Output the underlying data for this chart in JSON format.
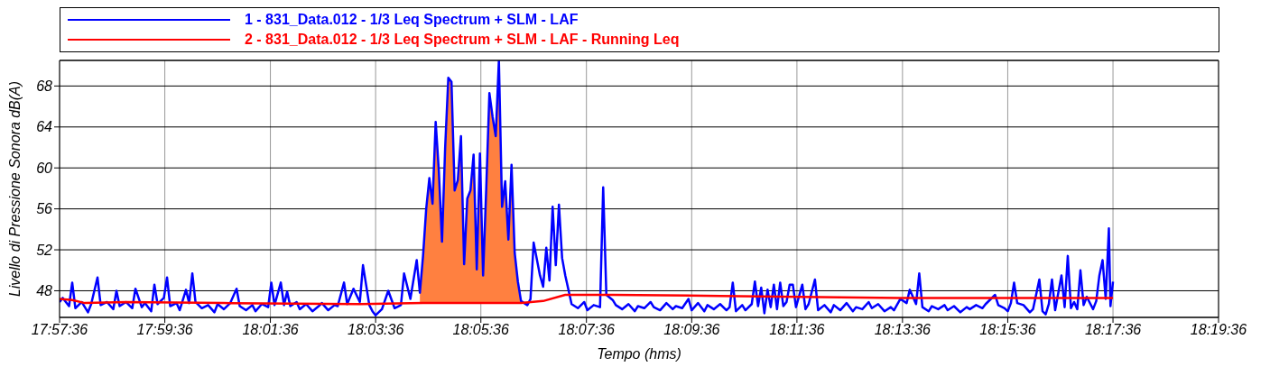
{
  "chart_data": {
    "type": "line",
    "xlabel": "Tempo (hms)",
    "ylabel": "Livello di Pressione Sonora dB(A)",
    "xlim": [
      17.96,
      18.3267
    ],
    "xticks": [
      {
        "value": 17.96,
        "label": "17:57:36"
      },
      {
        "value": 17.9933,
        "label": "17:59:36"
      },
      {
        "value": 18.0267,
        "label": "18:01:36"
      },
      {
        "value": 18.06,
        "label": "18:03:36"
      },
      {
        "value": 18.0933,
        "label": "18:05:36"
      },
      {
        "value": 18.1267,
        "label": "18:07:36"
      },
      {
        "value": 18.16,
        "label": "18:09:36"
      },
      {
        "value": 18.1933,
        "label": "18:11:36"
      },
      {
        "value": 18.2267,
        "label": "18:13:36"
      },
      {
        "value": 18.26,
        "label": "18:15:36"
      },
      {
        "value": 18.2933,
        "label": "18:17:36"
      },
      {
        "value": 18.3267,
        "label": "18:19:36"
      }
    ],
    "ylim": [
      45.4,
      70.5
    ],
    "yticks": [
      48,
      52,
      56,
      60,
      64,
      68
    ],
    "grid": true,
    "legend": "top",
    "series": [
      {
        "name": "1 - 831_Data.012 - 1/3 Leq Spectrum + SLM - LAF",
        "color": "#0000ff",
        "x": [
          17.96,
          17.961,
          17.963,
          17.964,
          17.965,
          17.967,
          17.969,
          17.97,
          17.972,
          17.973,
          17.975,
          17.977,
          17.978,
          17.979,
          17.981,
          17.983,
          17.984,
          17.986,
          17.987,
          17.989,
          17.99,
          17.991,
          17.993,
          17.994,
          17.995,
          17.997,
          17.998,
          18.0,
          18.001,
          18.002,
          18.003,
          18.005,
          18.007,
          18.009,
          18.01,
          18.012,
          18.014,
          18.016,
          18.017,
          18.019,
          18.021,
          18.022,
          18.024,
          18.026,
          18.027,
          18.028,
          18.03,
          18.031,
          18.032,
          18.033,
          18.035,
          18.036,
          18.038,
          18.04,
          18.042,
          18.043,
          18.045,
          18.047,
          18.048,
          18.05,
          18.051,
          18.053,
          18.055,
          18.056,
          18.058,
          18.059,
          18.06,
          18.062,
          18.064,
          18.066,
          18.068,
          18.069,
          18.071,
          18.073,
          18.074,
          18.075,
          18.076,
          18.077,
          18.078,
          18.079,
          18.08,
          18.081,
          18.082,
          18.083,
          18.084,
          18.085,
          18.086,
          18.087,
          18.088,
          18.089,
          18.09,
          18.091,
          18.092,
          18.093,
          18.094,
          18.095,
          18.096,
          18.097,
          18.098,
          18.099,
          18.1,
          18.101,
          18.102,
          18.103,
          18.104,
          18.105,
          18.106,
          18.108,
          18.109,
          18.11,
          18.112,
          18.113,
          18.114,
          18.115,
          18.116,
          18.117,
          18.118,
          18.119,
          18.12,
          18.121,
          18.122,
          18.124,
          18.126,
          18.127,
          18.129,
          18.131,
          18.132,
          18.133,
          18.135,
          18.136,
          18.138,
          18.14,
          18.142,
          18.143,
          18.145,
          18.147,
          18.148,
          18.15,
          18.152,
          18.154,
          18.155,
          18.157,
          18.159,
          18.16,
          18.162,
          18.164,
          18.165,
          18.167,
          18.169,
          18.171,
          18.172,
          18.173,
          18.174,
          18.176,
          18.177,
          18.179,
          18.18,
          18.181,
          18.182,
          18.183,
          18.184,
          18.185,
          18.186,
          18.187,
          18.188,
          18.189,
          18.19,
          18.191,
          18.192,
          18.193,
          18.195,
          18.196,
          18.197,
          18.199,
          18.2,
          18.202,
          18.204,
          18.205,
          18.207,
          18.209,
          18.211,
          18.212,
          18.214,
          18.216,
          18.217,
          18.219,
          18.221,
          18.223,
          18.224,
          18.226,
          18.228,
          18.229,
          18.231,
          18.232,
          18.233,
          18.235,
          18.236,
          18.238,
          18.24,
          18.241,
          18.243,
          18.245,
          18.247,
          18.248,
          18.25,
          18.252,
          18.253,
          18.256,
          18.257,
          18.259,
          18.26,
          18.261,
          18.262,
          18.263,
          18.265,
          18.267,
          18.268,
          18.27,
          18.271,
          18.272,
          18.273,
          18.274,
          18.275,
          18.277,
          18.278,
          18.279,
          18.28,
          18.281,
          18.282,
          18.283,
          18.284,
          18.285,
          18.287,
          18.288,
          18.289,
          18.29,
          18.291,
          18.292,
          18.2925,
          18.2933
        ],
        "values": [
          46.9,
          47.3,
          46.5,
          48.8,
          46.3,
          46.9,
          45.9,
          46.7,
          49.3,
          46.6,
          46.9,
          46.2,
          48.0,
          46.5,
          46.9,
          46.3,
          48.2,
          46.4,
          46.8,
          46.0,
          48.6,
          46.7,
          47.3,
          49.3,
          46.5,
          46.8,
          46.1,
          48.1,
          46.8,
          49.7,
          46.9,
          46.3,
          46.6,
          45.9,
          46.7,
          46.2,
          46.8,
          48.2,
          46.5,
          46.1,
          46.6,
          46.0,
          46.7,
          46.4,
          48.8,
          46.6,
          48.8,
          46.6,
          47.9,
          46.5,
          46.9,
          46.2,
          46.7,
          46.0,
          46.5,
          46.8,
          46.1,
          46.6,
          46.5,
          48.8,
          46.7,
          48.2,
          46.9,
          50.5,
          46.6,
          46.0,
          45.6,
          46.2,
          48.0,
          46.3,
          46.6,
          49.7,
          47.2,
          51.0,
          47.8,
          51.4,
          56.0,
          59.0,
          56.5,
          64.5,
          59.7,
          52.8,
          62.0,
          68.8,
          68.4,
          57.8,
          58.8,
          63.1,
          50.6,
          57.0,
          57.8,
          61.3,
          50.1,
          61.4,
          49.5,
          58.0,
          67.3,
          65.0,
          63.1,
          70.5,
          56.2,
          58.7,
          53.0,
          60.3,
          51.7,
          48.9,
          47.0,
          46.6,
          47.2,
          52.7,
          49.5,
          48.4,
          52.2,
          49.0,
          56.2,
          50.5,
          56.4,
          51.2,
          49.5,
          48.1,
          46.7,
          46.3,
          46.9,
          46.1,
          46.6,
          46.4,
          58.1,
          47.6,
          47.1,
          46.6,
          46.2,
          46.7,
          46.0,
          46.5,
          46.3,
          46.9,
          46.4,
          46.1,
          46.8,
          46.2,
          46.5,
          46.3,
          47.2,
          46.1,
          46.8,
          46.0,
          46.6,
          46.2,
          46.7,
          46.1,
          46.4,
          48.8,
          46.0,
          46.6,
          46.1,
          46.7,
          48.9,
          46.5,
          48.3,
          45.8,
          48.1,
          46.4,
          48.6,
          46.2,
          48.8,
          46.5,
          46.9,
          48.6,
          48.6,
          46.4,
          48.6,
          46.2,
          46.7,
          49.1,
          46.1,
          46.6,
          45.9,
          46.6,
          46.1,
          46.8,
          46.0,
          46.4,
          46.2,
          46.9,
          46.3,
          46.7,
          46.0,
          46.4,
          46.1,
          47.2,
          46.8,
          48.1,
          46.7,
          49.7,
          46.4,
          46.0,
          46.5,
          46.2,
          46.6,
          46.1,
          46.5,
          45.9,
          46.4,
          46.2,
          46.6,
          46.3,
          46.7,
          47.6,
          46.6,
          46.3,
          46.0,
          46.8,
          48.8,
          46.8,
          46.6,
          45.9,
          46.2,
          49.1,
          46.0,
          45.7,
          46.7,
          49.1,
          46.1,
          49.5,
          46.4,
          51.4,
          46.3,
          46.9,
          46.2,
          50.0,
          46.6,
          47.4,
          46.2,
          47.0,
          49.5,
          51.0,
          47.2,
          54.1,
          46.5,
          48.9
        ]
      },
      {
        "name": "2 - 831_Data.012 - 1/3 Leq Spectrum + SLM - LAF - Running Leq",
        "color": "#ff0000",
        "x": [
          17.96,
          17.964,
          17.968,
          17.981,
          18.012,
          18.055,
          18.075,
          18.106,
          18.113,
          18.12,
          18.135,
          18.169,
          18.226,
          18.2933
        ],
        "values": [
          47.2,
          47.1,
          46.8,
          46.9,
          46.8,
          46.7,
          46.8,
          46.8,
          47.0,
          47.6,
          47.6,
          47.5,
          47.3,
          47.3
        ]
      },
      {
        "type": "area",
        "color": "#ff8040",
        "x": [
          18.074,
          18.075,
          18.076,
          18.077,
          18.078,
          18.079,
          18.08,
          18.081,
          18.082,
          18.083,
          18.084,
          18.085,
          18.086,
          18.087,
          18.088,
          18.089,
          18.09,
          18.091,
          18.092,
          18.093,
          18.094,
          18.095,
          18.096,
          18.097,
          18.098,
          18.099,
          18.1,
          18.101,
          18.102,
          18.103,
          18.104,
          18.105,
          18.106
        ],
        "values": [
          47.8,
          51.4,
          56.0,
          59.0,
          56.5,
          64.5,
          59.7,
          52.8,
          62.0,
          68.8,
          68.4,
          57.8,
          58.8,
          63.1,
          50.6,
          57.0,
          57.8,
          61.3,
          50.1,
          61.4,
          49.5,
          58.0,
          67.3,
          65.0,
          63.1,
          70.5,
          56.2,
          58.7,
          53.0,
          60.3,
          51.7,
          48.9,
          47.0
        ]
      }
    ]
  }
}
